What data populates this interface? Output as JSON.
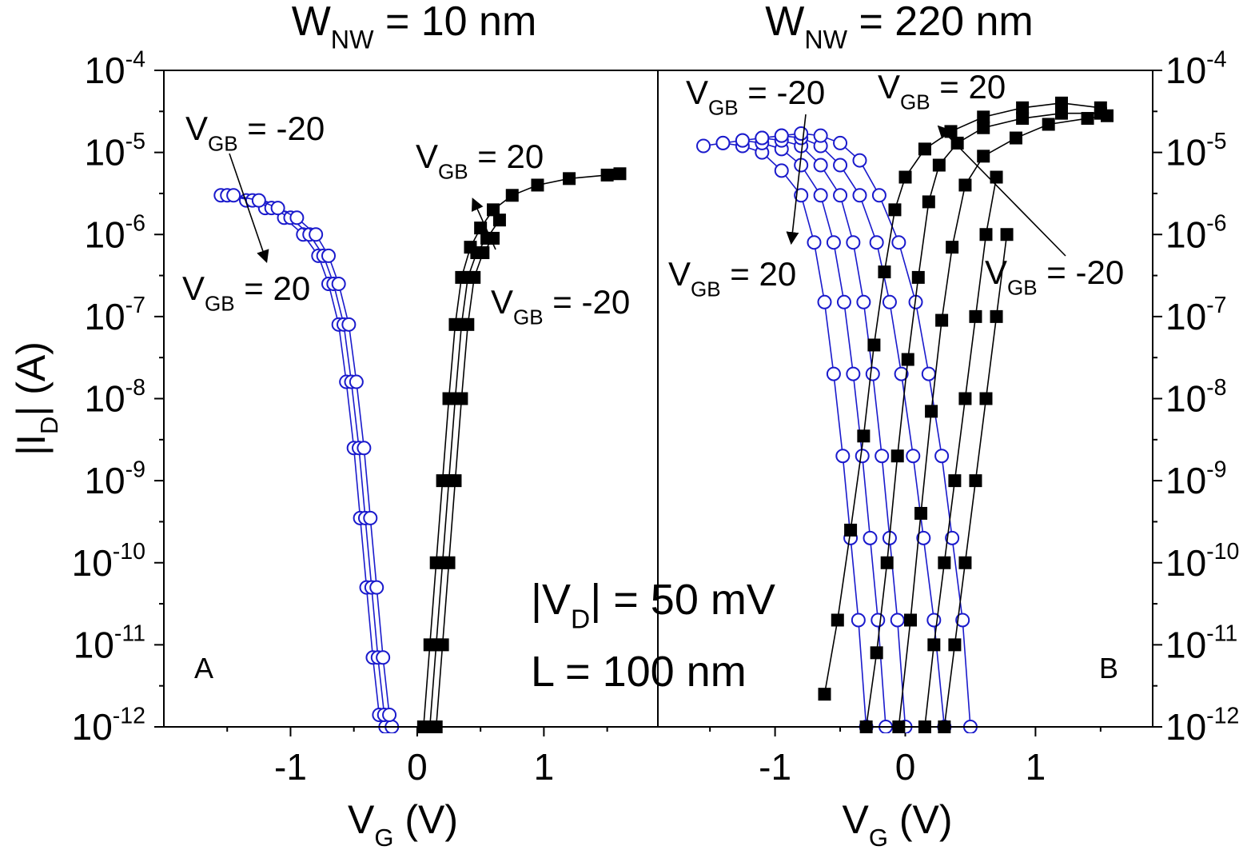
{
  "figure": {
    "ylabel_prefix": "|I",
    "ylabel_sub": "D",
    "ylabel_suffix": "| (A)",
    "annotation_vd_prefix": "|V",
    "annotation_vd_sub": "D",
    "annotation_vd_suffix": "| = 50 mV",
    "annotation_l": "L = 100 nm",
    "y_tick_labels": [
      {
        "base": "10",
        "exp": "-4"
      },
      {
        "base": "10",
        "exp": "-5"
      },
      {
        "base": "10",
        "exp": "-6"
      },
      {
        "base": "10",
        "exp": "-7"
      },
      {
        "base": "10",
        "exp": "-8"
      },
      {
        "base": "10",
        "exp": "-9"
      },
      {
        "base": "10",
        "exp": "-10"
      },
      {
        "base": "10",
        "exp": "-11"
      },
      {
        "base": "10",
        "exp": "-12"
      }
    ]
  },
  "chart_data": [
    {
      "type": "scatter",
      "panel_label": "A",
      "title": {
        "prefix": "W",
        "sub": "NW",
        "suffix": " = 10 nm"
      },
      "xlabel": {
        "prefix": "V",
        "sub": "G",
        "suffix": " (V)"
      },
      "ylabel": "|I_D| (A)",
      "y_scale": "log",
      "xlim": [
        -2.0,
        1.9
      ],
      "ylim": [
        1e-12,
        0.0001
      ],
      "x_tick_labels": [
        "-1",
        "0",
        "1"
      ],
      "x_ticks": [
        -1,
        0,
        1
      ],
      "annotations": [
        {
          "text": {
            "prefix": "V",
            "sub": "GB",
            "suffix": " = -20"
          },
          "series": "hole (circles)",
          "arrow": "from V_GB = -20 to V_GB = 20"
        },
        {
          "text": {
            "prefix": "V",
            "sub": "GB",
            "suffix": " = 20"
          },
          "series": "hole (circles)"
        },
        {
          "text": {
            "prefix": "V",
            "sub": "GB",
            "suffix": " = 20"
          },
          "series": "electron (squares)",
          "arrow": "from V_GB = -20 to V_GB = 20"
        },
        {
          "text": {
            "prefix": "V",
            "sub": "GB",
            "suffix": " = -20"
          },
          "series": "electron (squares)"
        }
      ],
      "series": [
        {
          "marker": "circle-open",
          "color": "#1a1acc",
          "x": [
            -1.55,
            -1.35,
            -1.2,
            -1.05,
            -0.9,
            -0.78,
            -0.7,
            -0.62,
            -0.56,
            -0.5,
            -0.45,
            -0.4,
            -0.35,
            -0.3,
            -0.25,
            -0.2
          ],
          "y": [
            3e-06,
            2.6e-06,
            2.1e-06,
            1.6e-06,
            1e-06,
            5.5e-07,
            2.5e-07,
            8e-08,
            1.6e-08,
            2.5e-09,
            3.5e-10,
            5e-11,
            7e-12,
            1.4e-12,
            1e-12,
            1e-12
          ]
        },
        {
          "marker": "circle-open",
          "color": "#1a1acc",
          "x": [
            -1.5,
            -1.3,
            -1.15,
            -1.0,
            -0.85,
            -0.74,
            -0.66,
            -0.58,
            -0.52,
            -0.46,
            -0.41,
            -0.36,
            -0.31,
            -0.26
          ],
          "y": [
            3e-06,
            2.6e-06,
            2.1e-06,
            1.6e-06,
            1e-06,
            5.5e-07,
            2.5e-07,
            8e-08,
            1.6e-08,
            2.5e-09,
            3.5e-10,
            5e-11,
            7e-12,
            1.4e-12
          ]
        },
        {
          "marker": "circle-open",
          "color": "#1a1acc",
          "x": [
            -1.45,
            -1.25,
            -1.1,
            -0.95,
            -0.8,
            -0.7,
            -0.62,
            -0.54,
            -0.48,
            -0.42,
            -0.37,
            -0.32,
            -0.27,
            -0.22
          ],
          "y": [
            3e-06,
            2.6e-06,
            2.1e-06,
            1.6e-06,
            1e-06,
            5.5e-07,
            2.5e-07,
            8e-08,
            1.6e-08,
            2.5e-09,
            3.5e-10,
            5e-11,
            7e-12,
            1.4e-12
          ]
        },
        {
          "marker": "square-filled",
          "color": "#000000",
          "x": [
            0.05,
            0.1,
            0.15,
            0.2,
            0.25,
            0.3,
            0.35,
            0.42,
            0.5,
            0.6,
            0.75,
            0.95,
            1.2,
            1.5,
            1.6
          ],
          "y": [
            1e-12,
            1e-11,
            1e-10,
            1e-09,
            1e-08,
            8e-08,
            3e-07,
            7e-07,
            1.2e-06,
            2e-06,
            3e-06,
            4e-06,
            4.8e-06,
            5.3e-06,
            5.5e-06
          ]
        },
        {
          "marker": "square-filled",
          "color": "#000000",
          "x": [
            0.1,
            0.15,
            0.2,
            0.25,
            0.3,
            0.35,
            0.4,
            0.47,
            0.55,
            0.65
          ],
          "y": [
            1e-12,
            1e-11,
            1e-10,
            1e-09,
            1e-08,
            8e-08,
            3e-07,
            6e-07,
            9e-07,
            1.5e-06
          ]
        },
        {
          "marker": "square-filled",
          "color": "#000000",
          "x": [
            0.15,
            0.2,
            0.25,
            0.3,
            0.35,
            0.4,
            0.45,
            0.52,
            0.6
          ],
          "y": [
            1e-12,
            1e-11,
            1e-10,
            1e-09,
            1e-08,
            8e-08,
            3e-07,
            6e-07,
            9e-07
          ]
        }
      ]
    },
    {
      "type": "scatter",
      "panel_label": "B",
      "title": {
        "prefix": "W",
        "sub": "NW",
        "suffix": " = 220 nm"
      },
      "xlabel": {
        "prefix": "V",
        "sub": "G",
        "suffix": " (V)"
      },
      "ylabel": "|I_D| (A)",
      "y_scale": "log",
      "xlim": [
        -1.9,
        1.9
      ],
      "ylim": [
        1e-12,
        0.0001
      ],
      "x_tick_labels": [
        "-1",
        "0",
        "1"
      ],
      "x_ticks": [
        -1,
        0,
        1
      ],
      "annotations": [
        {
          "text": {
            "prefix": "V",
            "sub": "GB",
            "suffix": " = -20"
          },
          "series": "hole (circles)",
          "arrow": "from V_GB = -20 to V_GB = 20"
        },
        {
          "text": {
            "prefix": "V",
            "sub": "GB",
            "suffix": " = 20"
          },
          "series": "hole (circles)"
        },
        {
          "text": {
            "prefix": "V",
            "sub": "GB",
            "suffix": " = 20"
          },
          "series": "electron (squares)",
          "arrow": "from V_GB = -20 to V_GB = 20"
        },
        {
          "text": {
            "prefix": "V",
            "sub": "GB",
            "suffix": " = -20"
          },
          "series": "electron (squares)"
        }
      ],
      "series": [
        {
          "marker": "circle-open",
          "color": "#1a1acc",
          "x": [
            -1.55,
            -1.4,
            -1.25,
            -1.1,
            -0.95,
            -0.8,
            -0.7,
            -0.62,
            -0.55,
            -0.48,
            -0.42,
            -0.36,
            -0.3
          ],
          "y": [
            1.2e-05,
            1.3e-05,
            1.2e-05,
            1e-05,
            6e-06,
            3e-06,
            8e-07,
            1.5e-07,
            2e-08,
            2e-09,
            2e-10,
            2e-11,
            1e-12
          ]
        },
        {
          "marker": "circle-open",
          "color": "#1a1acc",
          "x": [
            -1.4,
            -1.25,
            -1.1,
            -0.95,
            -0.8,
            -0.65,
            -0.55,
            -0.47,
            -0.4,
            -0.33,
            -0.27,
            -0.21,
            -0.15
          ],
          "y": [
            1.3e-05,
            1.4e-05,
            1.3e-05,
            1.1e-05,
            7e-06,
            3e-06,
            8e-07,
            1.5e-07,
            2e-08,
            2e-09,
            2e-10,
            2e-11,
            1e-12
          ]
        },
        {
          "marker": "circle-open",
          "color": "#1a1acc",
          "x": [
            -1.25,
            -1.1,
            -0.95,
            -0.8,
            -0.65,
            -0.5,
            -0.4,
            -0.32,
            -0.25,
            -0.18,
            -0.12,
            -0.06,
            0.0
          ],
          "y": [
            1.4e-05,
            1.5e-05,
            1.4e-05,
            1.2e-05,
            7e-06,
            3e-06,
            8e-07,
            1.5e-07,
            2e-08,
            2e-09,
            2e-10,
            2e-11,
            1e-12
          ]
        },
        {
          "marker": "circle-open",
          "color": "#1a1acc",
          "x": [
            -1.1,
            -0.95,
            -0.8,
            -0.65,
            -0.5,
            -0.35,
            -0.22,
            -0.12,
            -0.03,
            0.06,
            0.14,
            0.22,
            0.3
          ],
          "y": [
            1.5e-05,
            1.6e-05,
            1.5e-05,
            1.2e-05,
            7e-06,
            3e-06,
            8e-07,
            1.5e-07,
            2e-08,
            2e-09,
            2e-10,
            2e-11,
            1e-12
          ]
        },
        {
          "marker": "circle-open",
          "color": "#1a1acc",
          "x": [
            -0.95,
            -0.8,
            -0.65,
            -0.5,
            -0.35,
            -0.2,
            -0.05,
            0.08,
            0.18,
            0.28,
            0.36,
            0.44,
            0.5
          ],
          "y": [
            1.6e-05,
            1.7e-05,
            1.6e-05,
            1.3e-05,
            8e-06,
            3e-06,
            8e-07,
            1.5e-07,
            2e-08,
            2e-09,
            2e-10,
            2e-11,
            1e-12
          ]
        },
        {
          "marker": "square-filled",
          "color": "#000000",
          "x": [
            -0.62,
            -0.52,
            -0.42,
            -0.32,
            -0.24,
            -0.16,
            -0.08,
            0.0,
            0.15,
            0.35,
            0.6,
            0.9,
            1.2,
            1.5
          ],
          "y": [
            2.5e-12,
            2e-11,
            2.5e-10,
            3.5e-09,
            4.5e-08,
            3.5e-07,
            2e-06,
            5e-06,
            1.1e-05,
            1.8e-05,
            2.7e-05,
            3.5e-05,
            4e-05,
            3.5e-05
          ]
        },
        {
          "marker": "square-filled",
          "color": "#000000",
          "x": [
            -0.3,
            -0.22,
            -0.14,
            -0.06,
            0.02,
            0.1,
            0.18,
            0.26,
            0.4,
            0.6,
            0.9,
            1.2,
            1.5
          ],
          "y": [
            1e-12,
            8e-12,
            1e-10,
            2e-09,
            3e-08,
            3e-07,
            2.5e-06,
            7e-06,
            1.3e-05,
            2e-05,
            2.6e-05,
            3e-05,
            3e-05
          ]
        },
        {
          "marker": "square-filled",
          "color": "#000000",
          "x": [
            -0.05,
            0.04,
            0.12,
            0.2,
            0.28,
            0.36,
            0.46,
            0.6,
            0.85,
            1.1,
            1.4,
            1.55
          ],
          "y": [
            1e-12,
            2e-11,
            4e-10,
            7e-09,
            9e-08,
            7e-07,
            4e-06,
            9e-06,
            1.5e-05,
            2.2e-05,
            2.6e-05,
            2.8e-05
          ]
        },
        {
          "marker": "square-filled",
          "color": "#000000",
          "x": [
            0.15,
            0.22,
            0.3,
            0.38,
            0.46,
            0.54,
            0.62,
            0.7
          ],
          "y": [
            1e-12,
            1e-11,
            1e-10,
            1e-09,
            1e-08,
            1e-07,
            1e-06,
            5e-06
          ]
        },
        {
          "marker": "square-filled",
          "color": "#000000",
          "x": [
            0.3,
            0.38,
            0.46,
            0.54,
            0.62,
            0.7,
            0.78
          ],
          "y": [
            1e-12,
            1e-11,
            1e-10,
            1e-09,
            1e-08,
            1e-07,
            1e-06
          ]
        }
      ]
    }
  ]
}
